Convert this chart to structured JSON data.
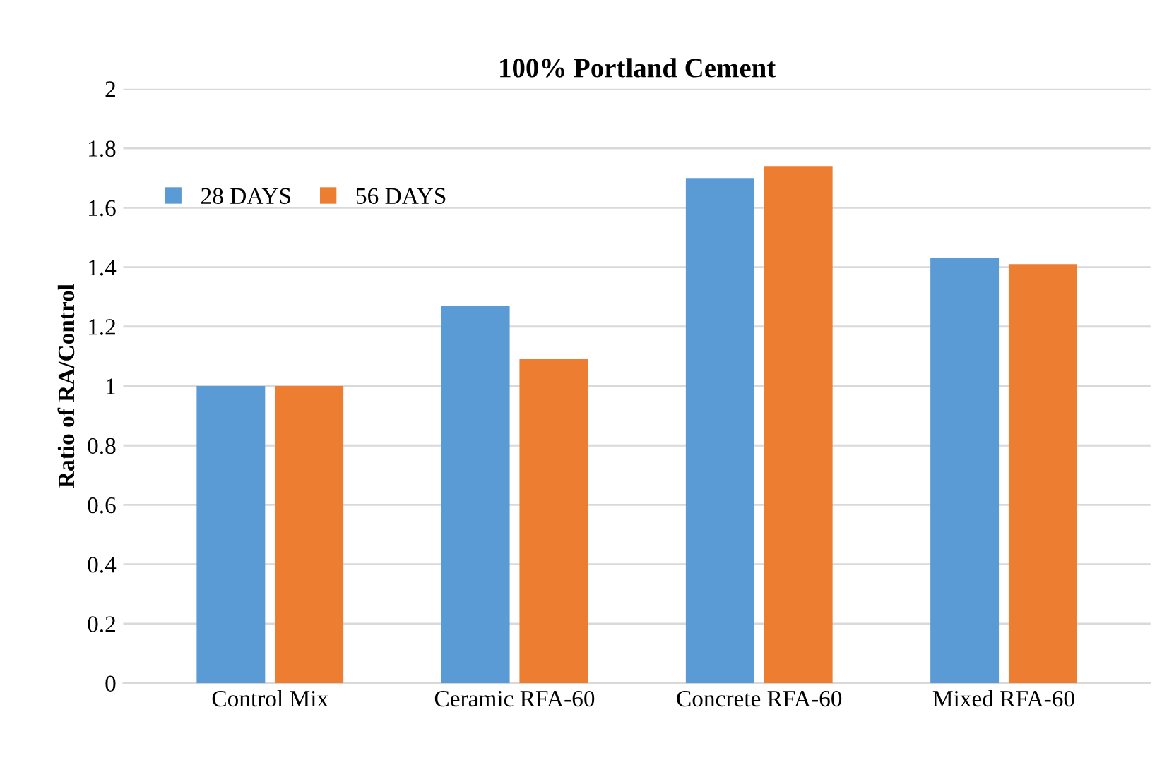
{
  "chart_data": {
    "type": "bar",
    "title": "100% Portland Cement",
    "ylabel": "Ratio of RA/Control",
    "categories": [
      "Control Mix",
      "Ceramic RFA-60",
      "Concrete RFA-60",
      "Mixed RFA-60"
    ],
    "series": [
      {
        "name": "28 DAYS",
        "color": "#5b9bd5",
        "values": [
          1.0,
          1.27,
          1.7,
          1.43
        ]
      },
      {
        "name": "56 DAYS",
        "color": "#ed7d31",
        "values": [
          1.0,
          1.09,
          1.74,
          1.41
        ]
      }
    ],
    "ylim": [
      0,
      2
    ],
    "yticks": [
      0,
      0.2,
      0.4,
      0.6,
      0.8,
      1,
      1.2,
      1.4,
      1.6,
      1.8,
      2
    ],
    "grid": "y",
    "legend": "top left"
  }
}
